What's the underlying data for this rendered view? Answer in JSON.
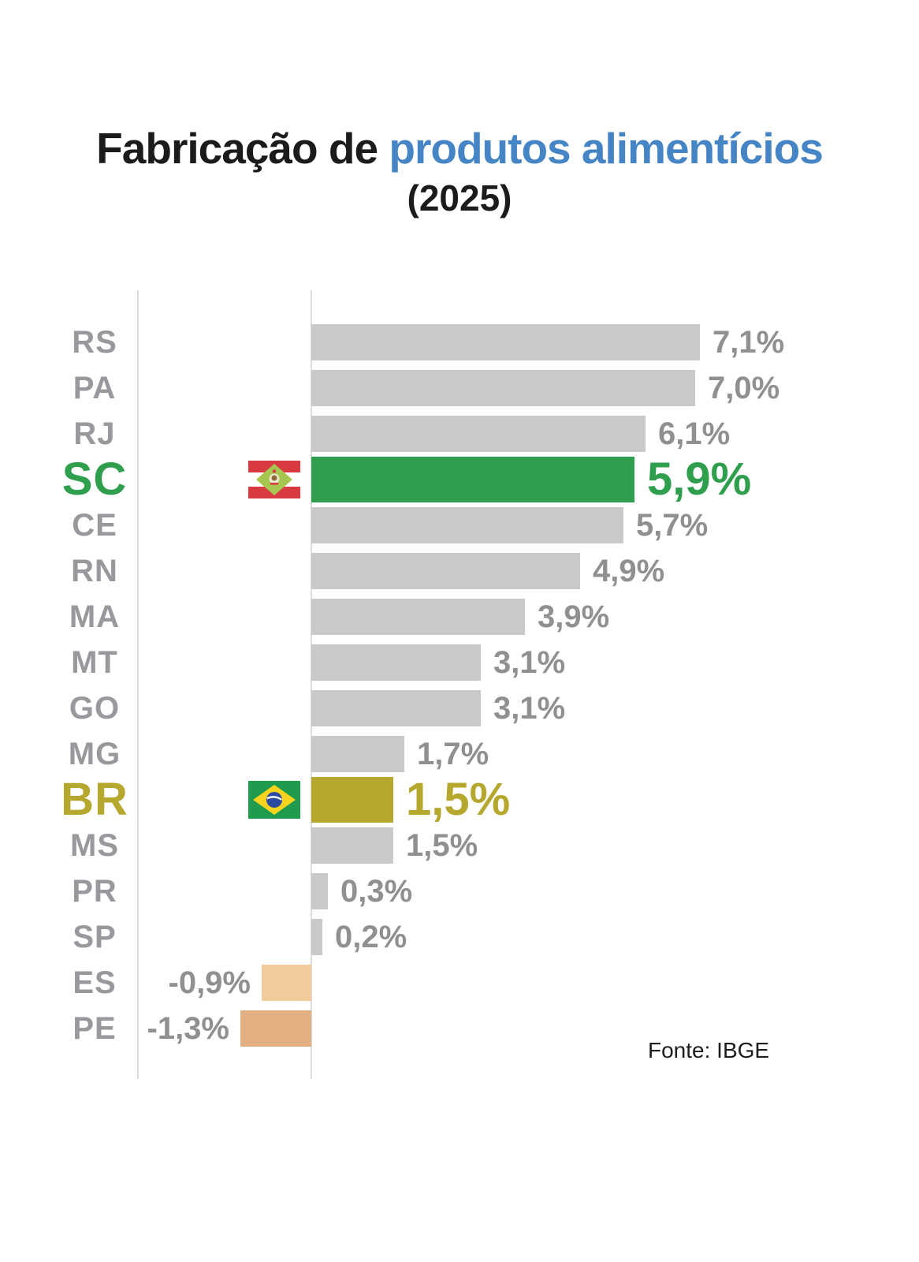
{
  "header": {
    "title_black": "Fabricação de ",
    "title_blue": "produtos alimentícios",
    "subtitle": "(2025)"
  },
  "colors": {
    "title_accent": "#4585c5",
    "bar_default": "#c9c9c9",
    "highlight_green": "#2f9e4d",
    "highlight_olive": "#b6a72e",
    "negative_light_tan": "#f2cb9d",
    "negative_tan": "#e2b083",
    "label_gray": "#97999c",
    "value_gray": "#8e9092"
  },
  "chart_data": {
    "type": "bar",
    "orientation": "horizontal",
    "title": "Fabricação de produtos alimentícios (2025)",
    "xlabel": "",
    "ylabel": "",
    "unit": "%",
    "xlim": [
      -1.5,
      7.5
    ],
    "grid": "two vertical guide lines (label divider and zero axis)",
    "source": "Fonte: IBGE",
    "rows": [
      {
        "state": "RS",
        "value": 7.1,
        "value_label": "7,1%",
        "bar_color": "#c9c9c9"
      },
      {
        "state": "PA",
        "value": 7.0,
        "value_label": "7,0%",
        "bar_color": "#c9c9c9"
      },
      {
        "state": "RJ",
        "value": 6.1,
        "value_label": "6,1%",
        "bar_color": "#c9c9c9"
      },
      {
        "state": "SC",
        "value": 5.9,
        "value_label": "5,9%",
        "bar_color": "#2f9e4d",
        "highlight": "green",
        "flag": "santa-catarina"
      },
      {
        "state": "CE",
        "value": 5.7,
        "value_label": "5,7%",
        "bar_color": "#c9c9c9"
      },
      {
        "state": "RN",
        "value": 4.9,
        "value_label": "4,9%",
        "bar_color": "#c9c9c9"
      },
      {
        "state": "MA",
        "value": 3.9,
        "value_label": "3,9%",
        "bar_color": "#c9c9c9"
      },
      {
        "state": "MT",
        "value": 3.1,
        "value_label": "3,1%",
        "bar_color": "#c9c9c9"
      },
      {
        "state": "GO",
        "value": 3.1,
        "value_label": "3,1%",
        "bar_color": "#c9c9c9"
      },
      {
        "state": "MG",
        "value": 1.7,
        "value_label": "1,7%",
        "bar_color": "#c9c9c9"
      },
      {
        "state": "BR",
        "value": 1.5,
        "value_label": "1,5%",
        "bar_color": "#b6a72e",
        "highlight": "olive",
        "flag": "brazil"
      },
      {
        "state": "MS",
        "value": 1.5,
        "value_label": "1,5%",
        "bar_color": "#c9c9c9"
      },
      {
        "state": "PR",
        "value": 0.3,
        "value_label": "0,3%",
        "bar_color": "#c9c9c9"
      },
      {
        "state": "SP",
        "value": 0.2,
        "value_label": "0,2%",
        "bar_color": "#c9c9c9"
      },
      {
        "state": "ES",
        "value": -0.9,
        "value_label": "-0,9%",
        "bar_color": "#f2cb9d"
      },
      {
        "state": "PE",
        "value": -1.3,
        "value_label": "-1,3%",
        "bar_color": "#e2b083"
      }
    ]
  }
}
